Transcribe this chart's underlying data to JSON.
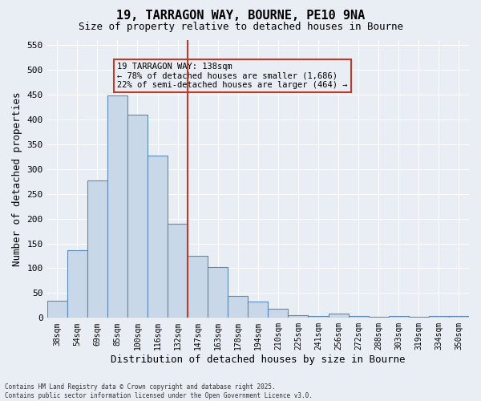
{
  "title": "19, TARRAGON WAY, BOURNE, PE10 9NA",
  "subtitle": "Size of property relative to detached houses in Bourne",
  "xlabel": "Distribution of detached houses by size in Bourne",
  "ylabel": "Number of detached properties",
  "categories": [
    "38sqm",
    "54sqm",
    "69sqm",
    "85sqm",
    "100sqm",
    "116sqm",
    "132sqm",
    "147sqm",
    "163sqm",
    "178sqm",
    "194sqm",
    "210sqm",
    "225sqm",
    "241sqm",
    "256sqm",
    "272sqm",
    "288sqm",
    "303sqm",
    "319sqm",
    "334sqm",
    "350sqm"
  ],
  "values": [
    35,
    137,
    277,
    449,
    410,
    327,
    190,
    125,
    102,
    45,
    33,
    18,
    6,
    4,
    8,
    4,
    2,
    4,
    2,
    4,
    4
  ],
  "bar_color": "#c8d8e8",
  "bar_edge_color": "#5a8ab5",
  "background_color": "#e8eef4",
  "vline_color": "#c0392b",
  "annotation_text": "19 TARRAGON WAY: 138sqm\n← 78% of detached houses are smaller (1,686)\n22% of semi-detached houses are larger (464) →",
  "annotation_box_color": "#c0392b",
  "footer": "Contains HM Land Registry data © Crown copyright and database right 2025.\nContains public sector information licensed under the Open Government Licence v3.0.",
  "ylim": [
    0,
    560
  ],
  "yticks": [
    0,
    50,
    100,
    150,
    200,
    250,
    300,
    350,
    400,
    450,
    500,
    550
  ],
  "vline_pos": 6.5
}
